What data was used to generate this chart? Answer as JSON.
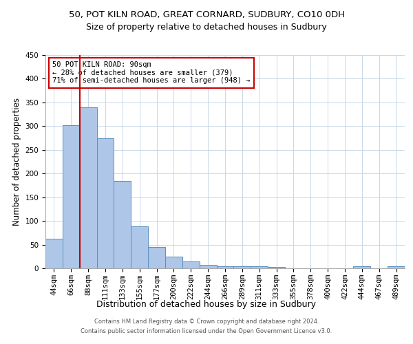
{
  "title1": "50, POT KILN ROAD, GREAT CORNARD, SUDBURY, CO10 0DH",
  "title2": "Size of property relative to detached houses in Sudbury",
  "xlabel": "Distribution of detached houses by size in Sudbury",
  "ylabel": "Number of detached properties",
  "footnote1": "Contains HM Land Registry data © Crown copyright and database right 2024.",
  "footnote2": "Contains public sector information licensed under the Open Government Licence v3.0.",
  "bar_labels": [
    "44sqm",
    "66sqm",
    "88sqm",
    "111sqm",
    "133sqm",
    "155sqm",
    "177sqm",
    "200sqm",
    "222sqm",
    "244sqm",
    "266sqm",
    "289sqm",
    "311sqm",
    "333sqm",
    "355sqm",
    "378sqm",
    "400sqm",
    "422sqm",
    "444sqm",
    "467sqm",
    "489sqm"
  ],
  "bar_values": [
    62,
    302,
    340,
    275,
    185,
    88,
    45,
    25,
    15,
    7,
    5,
    5,
    4,
    3,
    0,
    0,
    0,
    0,
    4,
    0,
    4
  ],
  "bar_color": "#aec6e8",
  "bar_edge_color": "#5a8fc0",
  "vline_color": "#cc0000",
  "annotation_text": "50 POT KILN ROAD: 90sqm\n← 28% of detached houses are smaller (379)\n71% of semi-detached houses are larger (948) →",
  "annotation_box_color": "#ffffff",
  "annotation_box_edge": "#cc0000",
  "ylim": [
    0,
    450
  ],
  "yticks": [
    0,
    50,
    100,
    150,
    200,
    250,
    300,
    350,
    400,
    450
  ],
  "bg_color": "#ffffff",
  "grid_color": "#c8d8e8",
  "title_fontsize": 9.5,
  "subtitle_fontsize": 9,
  "axis_label_fontsize": 8.5,
  "tick_fontsize": 7.5,
  "footnote_fontsize": 6
}
